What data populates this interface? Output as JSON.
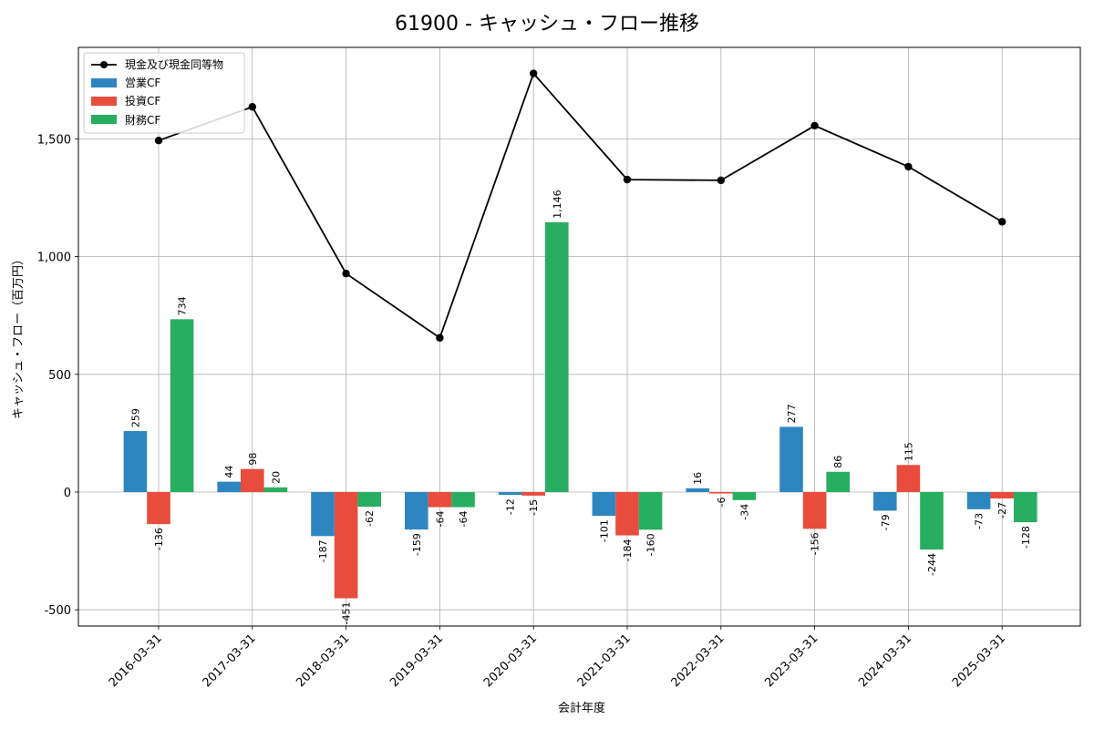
{
  "chart_data": {
    "type": "bar",
    "title": "61900 - キャッシュ・フロー推移",
    "xlabel": "会計年度",
    "ylabel": "キャッシュ・フロー（百万円）",
    "categories": [
      "2016-03-31",
      "2017-03-31",
      "2018-03-31",
      "2019-03-31",
      "2020-03-31",
      "2021-03-31",
      "2022-03-31",
      "2023-03-31",
      "2024-03-31",
      "2025-03-31"
    ],
    "series": [
      {
        "name": "営業CF",
        "type": "bar",
        "color": "#2e86c1",
        "values": [
          259,
          44,
          -187,
          -159,
          -12,
          -101,
          16,
          277,
          -79,
          -73
        ],
        "labels": [
          "259",
          "44",
          "-187",
          "-159",
          "-12",
          "-101",
          "16",
          "277",
          "-79",
          "-73"
        ]
      },
      {
        "name": "投資CF",
        "type": "bar",
        "color": "#e74c3c",
        "values": [
          -136,
          98,
          -451,
          -64,
          -15,
          -184,
          -6,
          -156,
          115,
          -27
        ],
        "labels": [
          "-136",
          "98",
          "-451",
          "-64",
          "-15",
          "-184",
          "-6",
          "-156",
          "115",
          "-27"
        ]
      },
      {
        "name": "財務CF",
        "type": "bar",
        "color": "#27ae60",
        "values": [
          734,
          20,
          -62,
          -64,
          1146,
          -160,
          -34,
          86,
          -244,
          -128
        ],
        "labels": [
          "734",
          "20",
          "-62",
          "-64",
          "1,146",
          "-160",
          "-34",
          "86",
          "-244",
          "-128"
        ]
      },
      {
        "name": "現金及び現金同等物",
        "type": "line",
        "color": "#000000",
        "values": [
          1493,
          1636,
          928,
          655,
          1778,
          1327,
          1324,
          1556,
          1382,
          1148
        ]
      }
    ],
    "yticks": [
      -500,
      0,
      500,
      1000,
      1500
    ],
    "ytick_labels": [
      "-500",
      "0",
      "500",
      "1,000",
      "1,500"
    ],
    "ylim": [
      -570,
      1890
    ],
    "grid": true,
    "legend_position": "top-left"
  }
}
